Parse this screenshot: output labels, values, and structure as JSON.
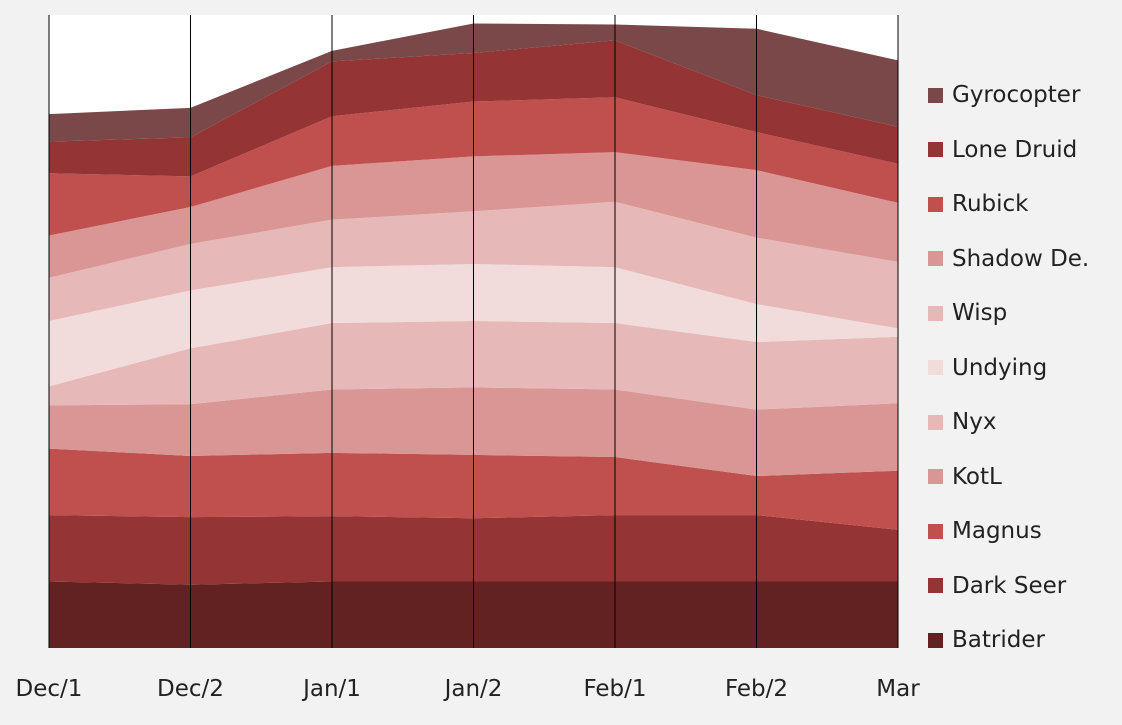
{
  "chart_data": {
    "type": "area",
    "stacked": true,
    "categories": [
      "Dec/1",
      "Dec/2",
      "Jan/1",
      "Jan/2",
      "Feb/1",
      "Feb/2",
      "Mar"
    ],
    "ylim": [
      0,
      600
    ],
    "grid": "vertical-only",
    "legend_position": "right",
    "series": [
      {
        "name": "Batrider",
        "color": "#632222",
        "values": [
          63,
          60,
          63,
          63,
          63,
          63,
          63
        ]
      },
      {
        "name": "Dark Seer",
        "color": "#943434",
        "values": [
          63,
          64,
          62,
          60,
          63,
          63,
          49
        ]
      },
      {
        "name": "Magnus",
        "color": "#c0504d",
        "values": [
          63,
          58,
          60,
          60,
          55,
          37,
          56
        ]
      },
      {
        "name": "KotL",
        "color": "#d99694",
        "values": [
          41,
          49,
          60,
          64,
          64,
          63,
          64
        ]
      },
      {
        "name": "Nyx",
        "color": "#e6b9b8",
        "values": [
          18,
          53,
          63,
          63,
          63,
          64,
          63
        ]
      },
      {
        "name": "Undying",
        "color": "#f2dcdb",
        "values": [
          62,
          55,
          53,
          54,
          53,
          36,
          8
        ]
      },
      {
        "name": "Wisp",
        "color": "#e6b9b8",
        "values": [
          41,
          44,
          45,
          50,
          62,
          63,
          63
        ]
      },
      {
        "name": "Shadow De.",
        "color": "#d99694",
        "values": [
          40,
          35,
          51,
          52,
          47,
          64,
          56
        ]
      },
      {
        "name": "Rubick",
        "color": "#c0504d",
        "values": [
          59,
          29,
          47,
          52,
          52,
          36,
          37
        ]
      },
      {
        "name": "Lone Druid",
        "color": "#943434",
        "values": [
          30,
          37,
          52,
          46,
          54,
          35,
          35
        ]
      },
      {
        "name": "Gyrocopter",
        "color": "#7a4848",
        "values": [
          26,
          28,
          10,
          28,
          15,
          63,
          63
        ]
      }
    ]
  }
}
